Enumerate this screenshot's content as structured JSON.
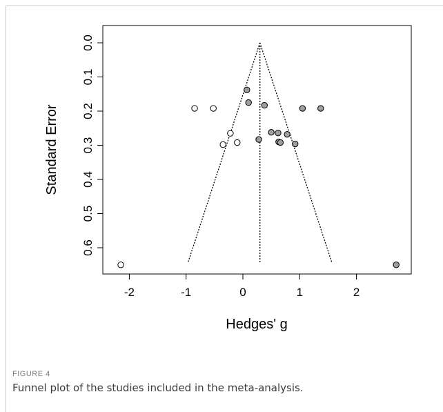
{
  "figure": {
    "label": "FIGURE 4",
    "caption": "Funnel plot of the studies included in the meta-analysis."
  },
  "chart_data": {
    "type": "scatter",
    "title": "",
    "xlabel": "Hedges' g",
    "ylabel": "Standard Error",
    "xlim": [
      -2.2,
      2.95
    ],
    "ylim": [
      0.0,
      0.67
    ],
    "y_reversed": true,
    "x_ticks": [
      -2,
      -1,
      0,
      1,
      2
    ],
    "x_tick_labels": [
      "-2",
      "-1",
      "0",
      "1",
      "2"
    ],
    "y_ticks": [
      0.0,
      0.1,
      0.2,
      0.3,
      0.4,
      0.5,
      0.6
    ],
    "y_tick_labels": [
      "0.0",
      "0.1",
      "0.2",
      "0.3",
      "0.4",
      "0.5",
      "0.6"
    ],
    "grid": false,
    "legend": "none",
    "summary_effect": 0.3,
    "funnel": {
      "apex": [
        0.3,
        0.0
      ],
      "left_base": [
        -0.97,
        0.645
      ],
      "right_base": [
        1.57,
        0.645
      ]
    },
    "series": [
      {
        "style": "open",
        "fill": "#ffffff",
        "points": [
          [
            -0.85,
            0.192
          ],
          [
            -0.52,
            0.192
          ],
          [
            -0.22,
            0.265
          ],
          [
            -0.35,
            0.298
          ],
          [
            -0.1,
            0.292
          ],
          [
            -2.15,
            0.65
          ]
        ]
      },
      {
        "style": "filled",
        "fill": "#9e9e9e",
        "points": [
          [
            0.07,
            0.138
          ],
          [
            0.1,
            0.175
          ],
          [
            0.38,
            0.183
          ],
          [
            1.05,
            0.192
          ],
          [
            1.37,
            0.192
          ],
          [
            0.5,
            0.262
          ],
          [
            0.62,
            0.264
          ],
          [
            0.78,
            0.268
          ],
          [
            0.63,
            0.29
          ],
          [
            0.66,
            0.292
          ],
          [
            0.92,
            0.296
          ],
          [
            0.28,
            0.283
          ],
          [
            2.7,
            0.65
          ]
        ]
      }
    ]
  }
}
